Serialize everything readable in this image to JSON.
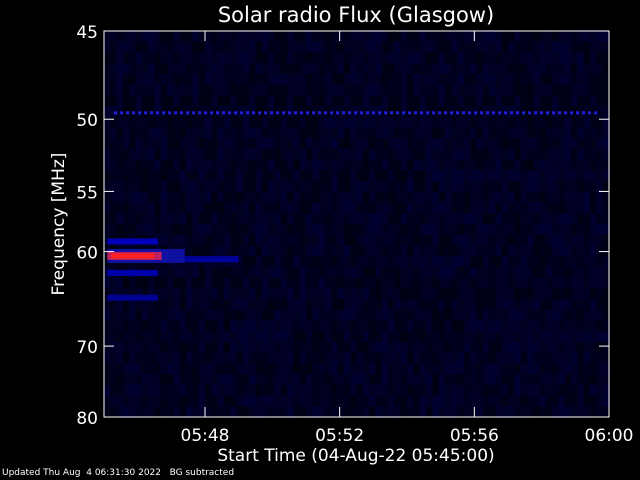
{
  "chart_data": {
    "type": "heatmap",
    "title": "Solar radio Flux (Glasgow)",
    "ylabel": "Frequency [MHz]",
    "xlabel": "Start Time (04-Aug-22 05:45:00)",
    "y_ticks": [
      45,
      50,
      55,
      60,
      70,
      80
    ],
    "ylim": [
      45,
      80
    ],
    "y_scale": "reciprocal",
    "x_ticks": [
      "05:48",
      "05:52",
      "05:56",
      "06:00"
    ],
    "x_tick_values_minutes": [
      3,
      7,
      11,
      15
    ],
    "xlim_minutes": [
      0,
      15
    ],
    "grid": false,
    "colormap": [
      "#000010",
      "#0000c0",
      "#8080ff",
      "#c02060",
      "#ff2020"
    ],
    "features": [
      {
        "name": "dotted interference line",
        "freq_mhz": 49.6,
        "t_start_min": 0.3,
        "t_end_min": 14.6,
        "intensity": 0.55
      },
      {
        "name": "emission band",
        "freq_mhz": 60.4,
        "t_start_min": 0.1,
        "t_end_min": 2.4,
        "intensity": 1.0
      },
      {
        "name": "emission band upper",
        "freq_mhz": 59.1,
        "t_start_min": 0.1,
        "t_end_min": 1.6,
        "intensity": 0.6
      },
      {
        "name": "emission band lower",
        "freq_mhz": 62.0,
        "t_start_min": 0.1,
        "t_end_min": 1.6,
        "intensity": 0.5
      },
      {
        "name": "weak trail",
        "freq_mhz": 60.7,
        "t_start_min": 2.4,
        "t_end_min": 4.0,
        "intensity": 0.4
      },
      {
        "name": "weak band 64",
        "freq_mhz": 64.5,
        "t_start_min": 0.1,
        "t_end_min": 1.6,
        "intensity": 0.35
      }
    ]
  },
  "footer": {
    "updated": "Updated Thu Aug  4 06:31:30 2022",
    "bg_note": "BG subtracted"
  }
}
